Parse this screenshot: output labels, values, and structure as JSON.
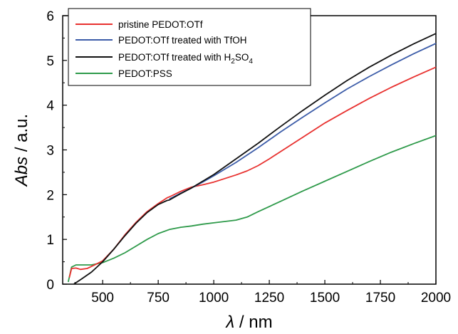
{
  "chart_data": {
    "type": "line",
    "xlabel_symbol": "λ",
    "xlabel_unit": " / nm",
    "ylabel_symbol": "Abs",
    "ylabel_unit": " / a.u.",
    "xlim": [
      320,
      2000
    ],
    "ylim": [
      0,
      6
    ],
    "x_ticks": [
      500,
      750,
      1000,
      1250,
      1500,
      1750,
      2000
    ],
    "y_ticks": [
      0,
      1,
      2,
      3,
      4,
      5,
      6
    ],
    "grid": false,
    "legend_position": "top-left",
    "series": [
      {
        "name": "pristine PEDOT:OTf",
        "color": "#e8312f",
        "x": [
          350,
          360,
          380,
          400,
          430,
          460,
          500,
          550,
          600,
          650,
          700,
          750,
          790,
          800,
          850,
          900,
          950,
          1000,
          1050,
          1100,
          1150,
          1200,
          1250,
          1300,
          1400,
          1500,
          1600,
          1700,
          1800,
          1900,
          2000
        ],
        "y": [
          0.15,
          0.35,
          0.36,
          0.33,
          0.35,
          0.42,
          0.52,
          0.78,
          1.1,
          1.38,
          1.62,
          1.8,
          1.93,
          1.95,
          2.07,
          2.17,
          2.22,
          2.28,
          2.36,
          2.44,
          2.53,
          2.65,
          2.8,
          2.96,
          3.28,
          3.6,
          3.88,
          4.15,
          4.4,
          4.63,
          4.85
        ]
      },
      {
        "name": "PEDOT:OTf treated with TfOH",
        "color": "#3c5ca8",
        "x": [
          800,
          850,
          900,
          950,
          1000,
          1100,
          1200,
          1300,
          1400,
          1500,
          1600,
          1700,
          1800,
          1900,
          2000
        ],
        "y": [
          1.9,
          2.03,
          2.15,
          2.28,
          2.42,
          2.72,
          3.05,
          3.4,
          3.73,
          4.05,
          4.36,
          4.64,
          4.9,
          5.15,
          5.38
        ]
      },
      {
        "name": "PEDOT:OTf treated with H",
        "name_sub1": "2",
        "name_mid": "SO",
        "name_sub2": "4",
        "color": "#111111",
        "x": [
          370,
          400,
          450,
          500,
          550,
          600,
          650,
          700,
          750,
          790,
          800,
          850,
          900,
          950,
          1000,
          1100,
          1200,
          1300,
          1400,
          1500,
          1600,
          1700,
          1800,
          1900,
          2000
        ],
        "y": [
          0.0,
          0.1,
          0.27,
          0.5,
          0.78,
          1.08,
          1.36,
          1.6,
          1.78,
          1.87,
          1.88,
          2.02,
          2.15,
          2.3,
          2.45,
          2.8,
          3.15,
          3.52,
          3.88,
          4.22,
          4.55,
          4.85,
          5.12,
          5.37,
          5.6
        ]
      },
      {
        "name": "PEDOT:PSS",
        "color": "#2e9a4a",
        "x": [
          345,
          360,
          380,
          400,
          450,
          500,
          550,
          600,
          650,
          700,
          750,
          800,
          850,
          900,
          950,
          1000,
          1050,
          1100,
          1150,
          1200,
          1300,
          1400,
          1500,
          1600,
          1700,
          1800,
          1900,
          2000
        ],
        "y": [
          0.05,
          0.38,
          0.43,
          0.43,
          0.43,
          0.48,
          0.58,
          0.7,
          0.85,
          1.0,
          1.13,
          1.22,
          1.27,
          1.3,
          1.34,
          1.37,
          1.4,
          1.43,
          1.5,
          1.62,
          1.85,
          2.08,
          2.3,
          2.52,
          2.74,
          2.95,
          3.14,
          3.32
        ]
      }
    ]
  }
}
